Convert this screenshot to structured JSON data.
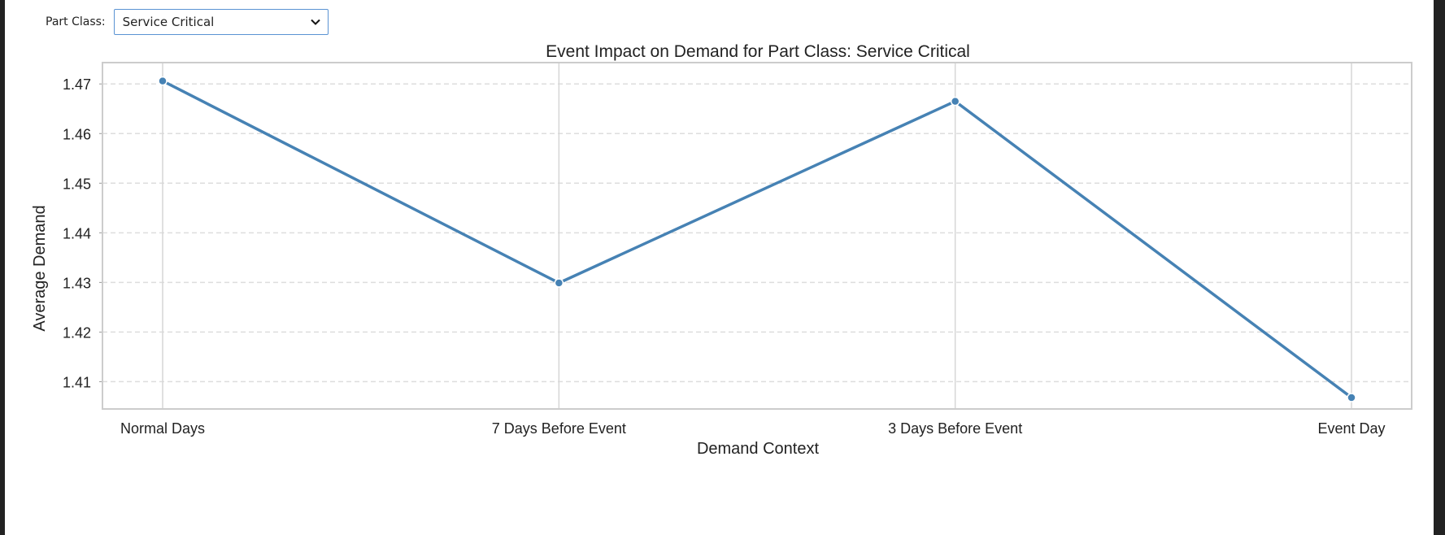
{
  "filter": {
    "label": "Part Class:",
    "selected": "Service Critical"
  },
  "icons": {
    "dropdown": "chevron-down-icon"
  },
  "colors": {
    "line": "#4682b4",
    "grid": "#dddddd",
    "frame": "#cccccc",
    "select_border": "#5a93d3"
  },
  "chart_data": {
    "type": "line",
    "title": "Event Impact on Demand for Part Class: Service Critical",
    "xlabel": "Demand Context",
    "ylabel": "Average Demand",
    "categories": [
      "Normal Days",
      "7 Days Before Event",
      "3 Days Before Event",
      "Event Day"
    ],
    "values": [
      1.4706,
      1.4299,
      1.4665,
      1.4068
    ],
    "yticks": [
      "1.41",
      "1.42",
      "1.43",
      "1.44",
      "1.45",
      "1.46",
      "1.47"
    ],
    "ylim": [
      1.4045,
      1.4743
    ],
    "grid": true,
    "legend": "none"
  }
}
